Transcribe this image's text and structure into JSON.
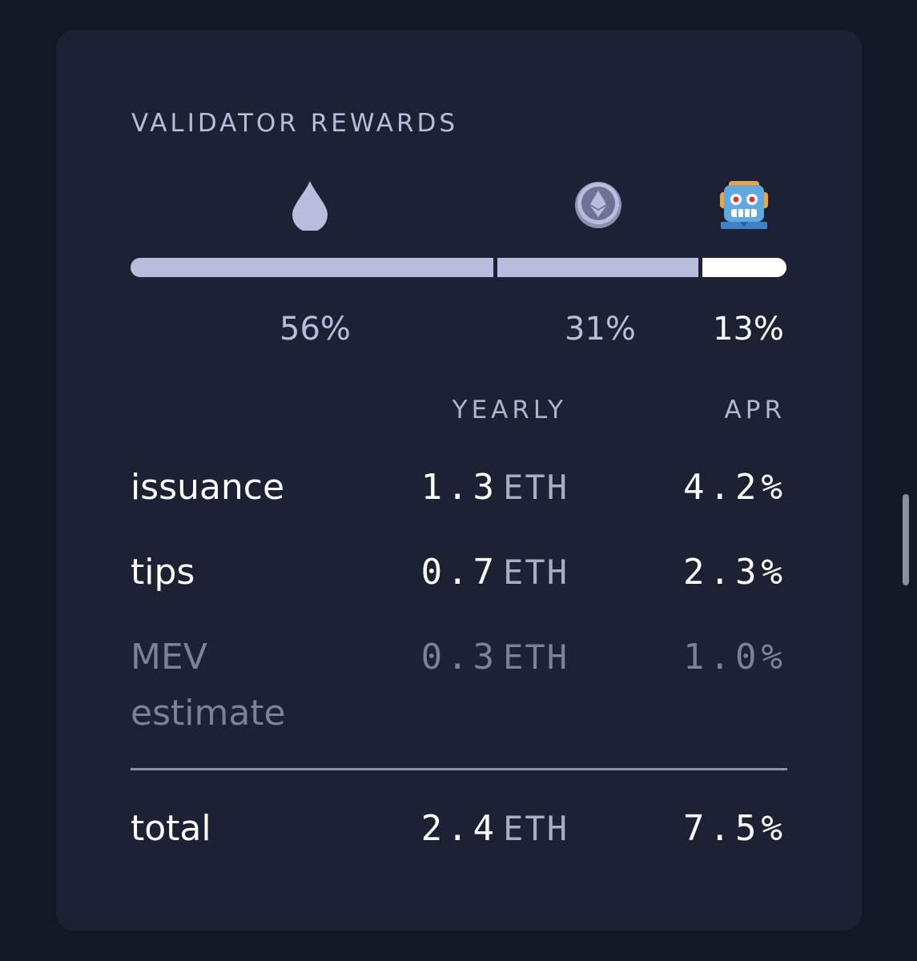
{
  "card": {
    "title": "VALIDATOR REWARDS"
  },
  "breakdown": {
    "segments": [
      {
        "key": "issuance",
        "icon": "drop-icon",
        "percent_label": "56%",
        "fraction": 0.56,
        "color": "#b9bcdc"
      },
      {
        "key": "tips",
        "icon": "ethereum-icon",
        "percent_label": "31%",
        "fraction": 0.31,
        "color": "#b9bcdc"
      },
      {
        "key": "mev",
        "icon": "robot-icon",
        "percent_label": "13%",
        "fraction": 0.13,
        "color": "#ffffff"
      }
    ]
  },
  "table": {
    "headers": {
      "yearly": "YEARLY",
      "apr": "APR"
    },
    "unit": "ETH",
    "rows": {
      "issuance": {
        "label": "issuance",
        "yearly": "1.3",
        "apr": "4.2%"
      },
      "tips": {
        "label": "tips",
        "yearly": "0.7",
        "apr": "2.3%"
      },
      "mev": {
        "label": "MEV estimate",
        "yearly": "0.3",
        "apr": "1.0%"
      },
      "total": {
        "label": "total",
        "yearly": "2.4",
        "apr": "7.5%"
      }
    }
  },
  "colors": {
    "background": "#131726",
    "card": "#1c2133",
    "accent": "#b9bcdc",
    "muted": "#7d8196"
  }
}
